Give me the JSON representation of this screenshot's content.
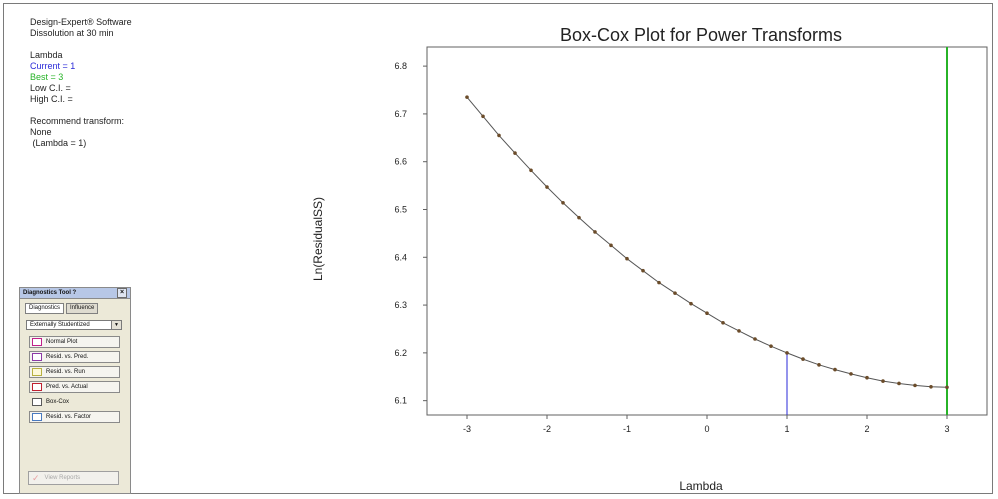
{
  "info": {
    "software": "Design-Expert® Software",
    "response": "Dissolution at 30 min",
    "lambda_heading": "Lambda",
    "current": "Current = 1",
    "best": "Best = 3",
    "low_ci": "Low C.I. =",
    "high_ci": "High C.I. =",
    "recommend_heading": "Recommend transform:",
    "recommend_value": "None",
    "recommend_lambda": " (Lambda = 1)"
  },
  "tool": {
    "title": "Diagnostics Tool ?",
    "close": "×",
    "tabs": [
      "Diagnostics",
      "Influence"
    ],
    "select_value": "Externally Studentized",
    "select_arrow": "▼",
    "buttons": [
      "Normal Plot",
      "Resid. vs. Pred.",
      "Resid. vs. Run",
      "Pred. vs. Actual",
      "Box-Cox",
      "Resid. vs. Factor"
    ],
    "view_reports": "View Reports"
  },
  "colors": {
    "current_line": "#2a2ad8",
    "best_line": "#27b327",
    "curve": "#555555",
    "points": "#6b4c2a"
  },
  "chart_data": {
    "type": "line",
    "title": "Box-Cox Plot for Power Transforms",
    "xlabel": "Lambda",
    "ylabel": "Ln(ResidualSS)",
    "xlim": [
      -3.5,
      3.5
    ],
    "ylim": [
      6.07,
      6.84
    ],
    "xticks": [
      -3,
      -2,
      -1,
      0,
      1,
      2,
      3
    ],
    "yticks": [
      6.1,
      6.2,
      6.3,
      6.4,
      6.5,
      6.6,
      6.7,
      6.8
    ],
    "x": [
      -3.0,
      -2.8,
      -2.6,
      -2.4,
      -2.2,
      -2.0,
      -1.8,
      -1.6,
      -1.4,
      -1.2,
      -1.0,
      -0.8,
      -0.6,
      -0.4,
      -0.2,
      0.0,
      0.2,
      0.4,
      0.6,
      0.8,
      1.0,
      1.2,
      1.4,
      1.6,
      1.8,
      2.0,
      2.2,
      2.4,
      2.6,
      2.8,
      3.0
    ],
    "y": [
      6.735,
      6.695,
      6.655,
      6.618,
      6.582,
      6.547,
      6.514,
      6.483,
      6.453,
      6.425,
      6.397,
      6.372,
      6.347,
      6.325,
      6.303,
      6.283,
      6.263,
      6.246,
      6.229,
      6.214,
      6.2,
      6.187,
      6.175,
      6.165,
      6.156,
      6.148,
      6.141,
      6.136,
      6.132,
      6.129,
      6.128
    ],
    "reference_lines": [
      {
        "name": "Current",
        "x": 1
      },
      {
        "name": "Best",
        "x": 3
      }
    ],
    "grid": false,
    "legend": "none"
  }
}
